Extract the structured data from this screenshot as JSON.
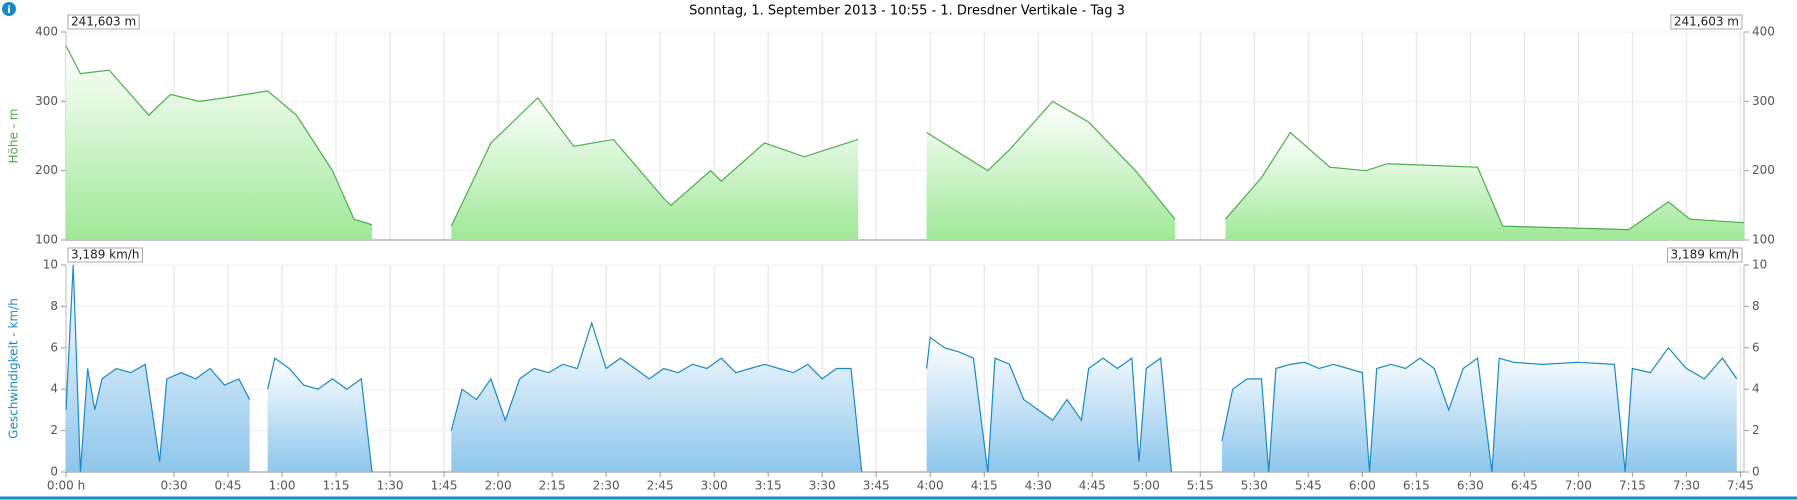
{
  "title": "Sonntag, 1. September 2013 - 10:55 - 1. Dresdner Vertikale - Tag 3",
  "chart_data": [
    {
      "type": "area",
      "y_label": "Höhe - m",
      "cursor_label": "241,603 m",
      "color": "#4cae4c",
      "fill": "#9fe897",
      "xlim": [
        0,
        466
      ],
      "ylim": [
        100,
        400
      ],
      "yticks": [
        100,
        200,
        300,
        400
      ],
      "y2lim": [
        100,
        400
      ],
      "y2ticks": [
        100,
        200,
        300,
        400
      ],
      "grid": true,
      "x": [
        0,
        2,
        4,
        12,
        23,
        29,
        37,
        44,
        50,
        56,
        64,
        74,
        80,
        85,
        86,
        107,
        118,
        131,
        141,
        152,
        166,
        168,
        179,
        182,
        194,
        205,
        220,
        221,
        239,
        256,
        262,
        274,
        284,
        297,
        308,
        309,
        322,
        332,
        340,
        351,
        361,
        367,
        392,
        399,
        434,
        445,
        451,
        466
      ],
      "values": [
        380,
        360,
        340,
        345,
        280,
        310,
        300,
        305,
        310,
        315,
        280,
        200,
        130,
        122,
        null,
        120,
        240,
        305,
        235,
        245,
        160,
        150,
        200,
        185,
        240,
        220,
        245,
        null,
        255,
        200,
        230,
        300,
        270,
        200,
        130,
        null,
        130,
        190,
        255,
        205,
        200,
        210,
        205,
        120,
        115,
        155,
        130,
        125
      ]
    },
    {
      "type": "area",
      "y_label": "Geschwindigkeit - km/h",
      "cursor_label": "3,189 km/h",
      "color": "#1a8ac6",
      "fill": "#8ec6ec",
      "xlim": [
        0,
        466
      ],
      "ylim": [
        0,
        10
      ],
      "yticks": [
        0,
        2,
        4,
        6,
        8,
        10
      ],
      "y2lim": [
        0,
        10
      ],
      "y2ticks": [
        0,
        2,
        4,
        6,
        8,
        10
      ],
      "grid": true,
      "xticks": [
        {
          "value": 0,
          "label": "0:00 h"
        },
        {
          "value": 30,
          "label": "0:30"
        },
        {
          "value": 45,
          "label": "0:45"
        },
        {
          "value": 60,
          "label": "1:00"
        },
        {
          "value": 75,
          "label": "1:15"
        },
        {
          "value": 90,
          "label": "1:30"
        },
        {
          "value": 105,
          "label": "1:45"
        },
        {
          "value": 120,
          "label": "2:00"
        },
        {
          "value": 135,
          "label": "2:15"
        },
        {
          "value": 150,
          "label": "2:30"
        },
        {
          "value": 165,
          "label": "2:45"
        },
        {
          "value": 180,
          "label": "3:00"
        },
        {
          "value": 195,
          "label": "3:15"
        },
        {
          "value": 210,
          "label": "3:30"
        },
        {
          "value": 225,
          "label": "3:45"
        },
        {
          "value": 240,
          "label": "4:00"
        },
        {
          "value": 255,
          "label": "4:15"
        },
        {
          "value": 270,
          "label": "4:30"
        },
        {
          "value": 285,
          "label": "4:45"
        },
        {
          "value": 300,
          "label": "5:00"
        },
        {
          "value": 315,
          "label": "5:15"
        },
        {
          "value": 330,
          "label": "5:30"
        },
        {
          "value": 345,
          "label": "5:45"
        },
        {
          "value": 360,
          "label": "6:00"
        },
        {
          "value": 375,
          "label": "6:15"
        },
        {
          "value": 390,
          "label": "6:30"
        },
        {
          "value": 405,
          "label": "6:45"
        },
        {
          "value": 420,
          "label": "7:00"
        },
        {
          "value": 435,
          "label": "7:15"
        },
        {
          "value": 450,
          "label": "7:30"
        },
        {
          "value": 465,
          "label": "7:45"
        }
      ],
      "x": [
        0,
        2,
        4,
        6,
        8,
        10,
        14,
        18,
        22,
        26,
        28,
        32,
        36,
        40,
        44,
        48,
        51,
        52,
        56,
        58,
        62,
        66,
        70,
        74,
        78,
        82,
        85,
        86,
        107,
        110,
        114,
        118,
        122,
        126,
        130,
        134,
        138,
        142,
        146,
        150,
        154,
        158,
        162,
        166,
        170,
        174,
        178,
        182,
        186,
        190,
        194,
        198,
        202,
        206,
        210,
        214,
        218,
        221,
        222,
        239,
        240,
        244,
        248,
        252,
        256,
        258,
        262,
        266,
        270,
        274,
        278,
        282,
        284,
        288,
        292,
        296,
        298,
        300,
        304,
        307,
        308,
        321,
        324,
        328,
        332,
        334,
        336,
        340,
        344,
        348,
        352,
        356,
        360,
        362,
        364,
        368,
        372,
        376,
        380,
        384,
        388,
        392,
        396,
        398,
        402,
        410,
        420,
        430,
        433,
        435,
        440,
        445,
        450,
        455,
        460,
        464
      ],
      "values": [
        3,
        10,
        0,
        5,
        3,
        4.5,
        5,
        4.8,
        5.2,
        0.5,
        4.5,
        4.8,
        4.5,
        5,
        4.2,
        4.5,
        3.5,
        null,
        4,
        5.5,
        5,
        4.2,
        4,
        4.5,
        4,
        4.5,
        0,
        null,
        2,
        4,
        3.5,
        4.5,
        2.5,
        4.5,
        5,
        4.8,
        5.2,
        5,
        7.2,
        5,
        5.5,
        5,
        4.5,
        5,
        4.8,
        5.2,
        5,
        5.5,
        4.8,
        5,
        5.2,
        5,
        4.8,
        5.2,
        4.5,
        5,
        5,
        0,
        null,
        5,
        6.5,
        6,
        5.8,
        5.5,
        0,
        5.5,
        5.2,
        3.5,
        3,
        2.5,
        3.5,
        2.5,
        5,
        5.5,
        5,
        5.5,
        0.5,
        5,
        5.5,
        0,
        null,
        1.5,
        4,
        4.5,
        4.5,
        0,
        5,
        5.2,
        5.3,
        5,
        5.2,
        5,
        4.8,
        0,
        5,
        5.2,
        5,
        5.5,
        5,
        3,
        5,
        5.5,
        0,
        5.5,
        5.3,
        5.2,
        5.3,
        5.2,
        0,
        5,
        4.8,
        6,
        5,
        4.5,
        5.5,
        4.5
      ]
    }
  ]
}
